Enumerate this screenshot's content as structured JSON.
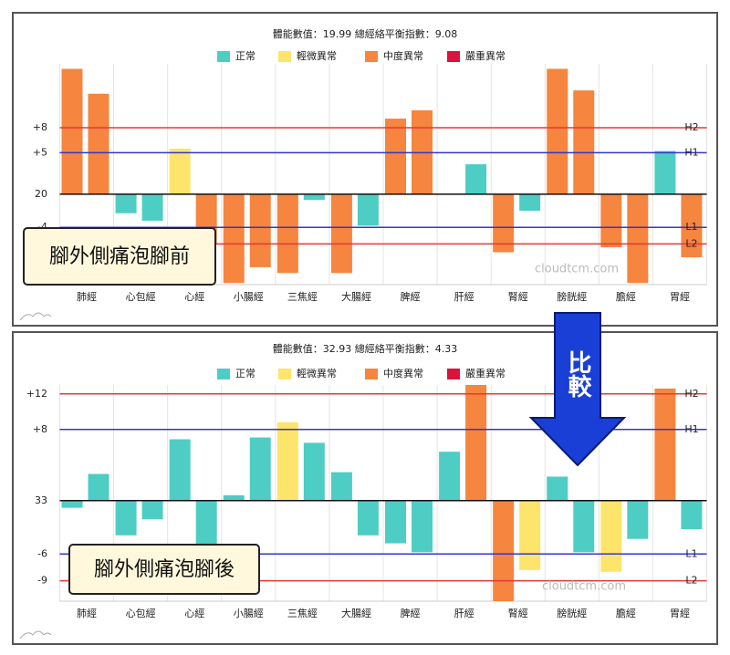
{
  "chart_data": [
    {
      "type": "bar",
      "title": "體能數值：19.99 總經絡平衡指數：9.08",
      "legend": [
        {
          "label": "正常",
          "color": "#4ecdc4"
        },
        {
          "label": "輕微異常",
          "color": "#fde46b"
        },
        {
          "label": "中度異常",
          "color": "#f5853f"
        },
        {
          "label": "嚴重異常",
          "color": "#d8143c"
        }
      ],
      "categories": [
        "肺經",
        "心包經",
        "心經",
        "小腸經",
        "三焦經",
        "大腸經",
        "脾經",
        "肝經",
        "腎經",
        "膀胱經",
        "膽經",
        "胃經"
      ],
      "series": [
        {
          "values": [
            15.1,
            -2.3,
            5.5,
            -10.7,
            -9.5,
            -9.5,
            9.1,
            0,
            -7.0,
            15.1,
            -6.4,
            5.2
          ],
          "colors": [
            "#f5853f",
            "#4ecdc4",
            "#fde46b",
            "#f5853f",
            "#f5853f",
            "#f5853f",
            "#f5853f",
            "#4ecdc4",
            "#f5853f",
            "#f5853f",
            "#f5853f",
            "#4ecdc4"
          ]
        },
        {
          "values": [
            12.1,
            -3.2,
            -6.0,
            -8.8,
            -0.7,
            -3.8,
            10.1,
            3.6,
            -2.0,
            12.5,
            -10.7,
            -7.6
          ],
          "colors": [
            "#f5853f",
            "#4ecdc4",
            "#f5853f",
            "#f5853f",
            "#4ecdc4",
            "#4ecdc4",
            "#f5853f",
            "#4ecdc4",
            "#4ecdc4",
            "#f5853f",
            "#f5853f",
            "#f5853f"
          ]
        }
      ],
      "ylim": [
        -10.9,
        15.7
      ],
      "yticks": [
        {
          "value": 8,
          "label": "+8"
        },
        {
          "value": 5,
          "label": "+5"
        },
        {
          "value": 0,
          "label": "20"
        },
        {
          "value": -4,
          "label": "-4"
        }
      ],
      "reference_lines": [
        {
          "label": "H2",
          "value": 8,
          "color": "#e53935"
        },
        {
          "label": "H1",
          "value": 5,
          "color": "#3535c8"
        },
        {
          "label": "L1",
          "value": -4,
          "color": "#3535c8"
        },
        {
          "label": "L2",
          "value": -6,
          "color": "#e53935"
        }
      ],
      "annotation": "腳外側痛泡腳前",
      "watermark": "cloudtcm.com"
    },
    {
      "type": "bar",
      "title": "體能數值：32.93 總經絡平衡指數：4.33",
      "legend": [
        {
          "label": "正常",
          "color": "#4ecdc4"
        },
        {
          "label": "輕微異常",
          "color": "#fde46b"
        },
        {
          "label": "中度異常",
          "color": "#f5853f"
        },
        {
          "label": "嚴重異常",
          "color": "#d8143c"
        }
      ],
      "categories": [
        "肺經",
        "心包經",
        "心經",
        "小腸經",
        "三焦經",
        "大腸經",
        "脾經",
        "肝經",
        "腎經",
        "膀胱經",
        "膽經",
        "胃經"
      ],
      "series": [
        {
          "values": [
            -0.8,
            -3.9,
            6.9,
            0.6,
            8.8,
            3.2,
            -4.8,
            5.5,
            -11.3,
            2.7,
            -8.0,
            12.6
          ],
          "colors": [
            "#4ecdc4",
            "#4ecdc4",
            "#4ecdc4",
            "#4ecdc4",
            "#fde46b",
            "#4ecdc4",
            "#4ecdc4",
            "#4ecdc4",
            "#f5853f",
            "#4ecdc4",
            "#fde46b",
            "#f5853f"
          ]
        },
        {
          "values": [
            3.0,
            -2.1,
            -5.5,
            7.1,
            6.5,
            -3.9,
            -5.8,
            13.0,
            -7.8,
            -5.8,
            -4.3,
            -3.2
          ],
          "colors": [
            "#4ecdc4",
            "#4ecdc4",
            "#4ecdc4",
            "#4ecdc4",
            "#4ecdc4",
            "#4ecdc4",
            "#4ecdc4",
            "#f5853f",
            "#fde46b",
            "#4ecdc4",
            "#4ecdc4",
            "#4ecdc4"
          ]
        }
      ],
      "ylim": [
        -11.3,
        13
      ],
      "yticks": [
        {
          "value": 12,
          "label": "+12"
        },
        {
          "value": 8,
          "label": "+8"
        },
        {
          "value": 0,
          "label": "33"
        },
        {
          "value": -6,
          "label": "-6"
        },
        {
          "value": -9,
          "label": "-9"
        }
      ],
      "reference_lines": [
        {
          "label": "H2",
          "value": 12,
          "color": "#e53935"
        },
        {
          "label": "H1",
          "value": 8,
          "color": "#3535c8"
        },
        {
          "label": "L1",
          "value": -6,
          "color": "#3535c8"
        },
        {
          "label": "L2",
          "value": -9,
          "color": "#e53935"
        }
      ],
      "annotation": "腳外側痛泡腳後",
      "watermark": "cloudtcm.com"
    }
  ],
  "comparison_label": "比較"
}
